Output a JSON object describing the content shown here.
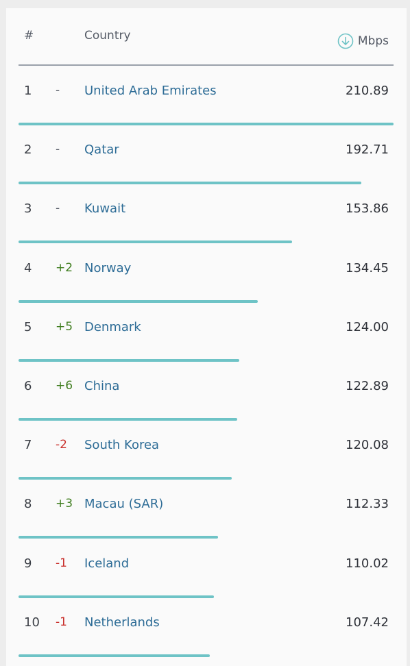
{
  "header": {
    "rank_label": "#",
    "country_label": "Country",
    "speed_label": "Mbps",
    "speed_icon": "download-arrow-icon"
  },
  "accent_color": "#6ec3c6",
  "rows": [
    {
      "rank": "1",
      "change": "-",
      "trend": "neutral",
      "country": "United Arab Emirates",
      "speed": "210.89",
      "value": 210.89
    },
    {
      "rank": "2",
      "change": "-",
      "trend": "neutral",
      "country": "Qatar",
      "speed": "192.71",
      "value": 192.71
    },
    {
      "rank": "3",
      "change": "-",
      "trend": "neutral",
      "country": "Kuwait",
      "speed": "153.86",
      "value": 153.86
    },
    {
      "rank": "4",
      "change": "+2",
      "trend": "up",
      "country": "Norway",
      "speed": "134.45",
      "value": 134.45
    },
    {
      "rank": "5",
      "change": "+5",
      "trend": "up",
      "country": "Denmark",
      "speed": "124.00",
      "value": 124.0
    },
    {
      "rank": "6",
      "change": "+6",
      "trend": "up",
      "country": "China",
      "speed": "122.89",
      "value": 122.89
    },
    {
      "rank": "7",
      "change": "-2",
      "trend": "down",
      "country": "South Korea",
      "speed": "120.08",
      "value": 120.08
    },
    {
      "rank": "8",
      "change": "+3",
      "trend": "up",
      "country": "Macau (SAR)",
      "speed": "112.33",
      "value": 112.33
    },
    {
      "rank": "9",
      "change": "-1",
      "trend": "down",
      "country": "Iceland",
      "speed": "110.02",
      "value": 110.02
    },
    {
      "rank": "10",
      "change": "-1",
      "trend": "down",
      "country": "Netherlands",
      "speed": "107.42",
      "value": 107.42
    }
  ]
}
